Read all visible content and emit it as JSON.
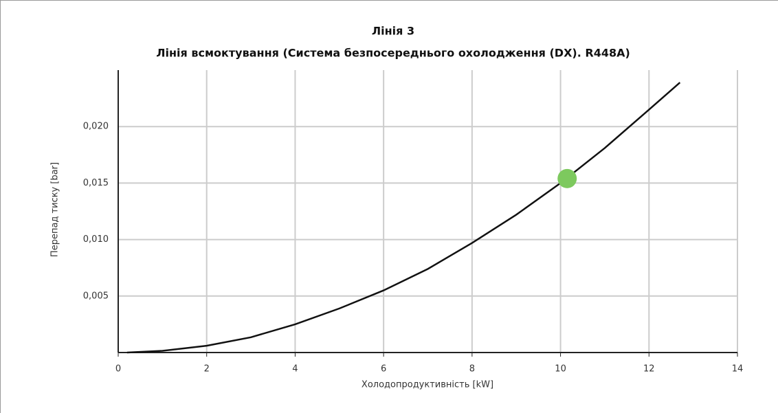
{
  "chart_data": {
    "type": "line",
    "title": "Лінія 3",
    "subtitle": "Лінія всмоктування (Система безпосереднього охолодження (DX). R448A)",
    "x_label": "Холодопродуктивність [kW]",
    "y_label": "Перепад тиску [bar]",
    "x": [
      0.2,
      1,
      2,
      3,
      4,
      5,
      6,
      7,
      8,
      9,
      10,
      11,
      12,
      12.7
    ],
    "values": [
      0,
      0.00015,
      0.0006,
      0.00135,
      0.0025,
      0.0039,
      0.0055,
      0.0074,
      0.0097,
      0.0122,
      0.015,
      0.0181,
      0.0215,
      0.0239
    ],
    "color": "#111111",
    "points": [
      {
        "x": 10.15,
        "y": 0.0154,
        "color": "#7dc95e"
      }
    ],
    "xlim": [
      0,
      14
    ],
    "xticks": [
      0,
      2,
      4,
      6,
      8,
      10,
      12,
      14
    ],
    "ylim": [
      0,
      0.025
    ],
    "yticks": [
      {
        "value": 0.005,
        "label": "0,005"
      },
      {
        "value": 0.01,
        "label": "0,010"
      },
      {
        "value": 0.015,
        "label": "0,015"
      },
      {
        "value": 0.02,
        "label": "0,020"
      }
    ],
    "grid": true
  }
}
